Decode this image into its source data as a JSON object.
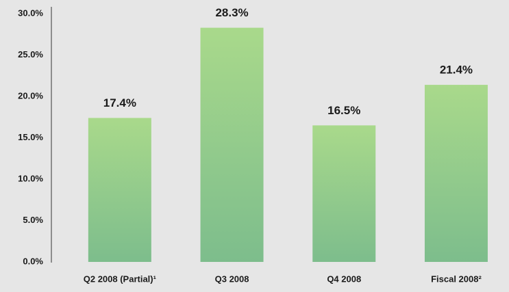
{
  "chart_data": {
    "type": "bar",
    "categories": [
      "Q2 2008 (Partial)¹",
      "Q3 2008",
      "Q4 2008",
      "Fiscal 2008²"
    ],
    "values": [
      17.4,
      28.3,
      16.5,
      21.4
    ],
    "value_labels": [
      "17.4%",
      "28.3%",
      "16.5%",
      "21.4%"
    ],
    "gradient": [
      "#a9d98b",
      "#7dbd8c"
    ],
    "ylim": [
      0,
      30
    ],
    "yticks": [
      {
        "value": 0,
        "label": "0.0%"
      },
      {
        "value": 5,
        "label": "5.0%"
      },
      {
        "value": 10,
        "label": "10.0%"
      },
      {
        "value": 15,
        "label": "15.0%"
      },
      {
        "value": 20,
        "label": "20.0%"
      },
      {
        "value": 25,
        "label": "25.0%"
      },
      {
        "value": 30,
        "label": "30.0%"
      }
    ],
    "grid": false
  }
}
